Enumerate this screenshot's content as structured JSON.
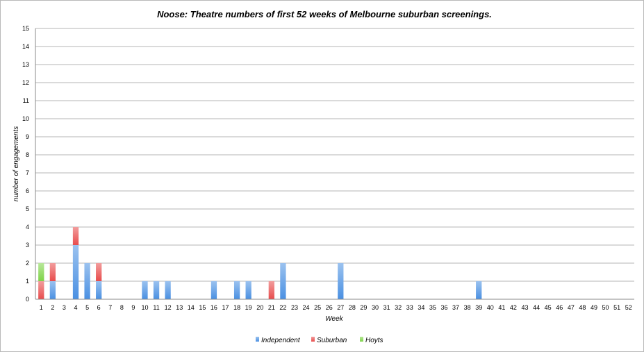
{
  "chart_data": {
    "type": "bar",
    "stacked": true,
    "title": "Noose: Theatre numbers of first 52 weeks of Melbourne suburban screenings.",
    "xlabel": "Week",
    "ylabel": "number of engagements",
    "ylim": [
      0,
      15
    ],
    "grid": true,
    "legend_position": "bottom",
    "categories": [
      "1",
      "2",
      "3",
      "4",
      "5",
      "6",
      "7",
      "8",
      "9",
      "10",
      "11",
      "12",
      "13",
      "14",
      "15",
      "16",
      "17",
      "18",
      "19",
      "20",
      "21",
      "22",
      "23",
      "24",
      "25",
      "26",
      "27",
      "28",
      "29",
      "30",
      "31",
      "32",
      "33",
      "34",
      "35",
      "36",
      "37",
      "38",
      "39",
      "40",
      "41",
      "42",
      "43",
      "44",
      "45",
      "46",
      "47",
      "48",
      "49",
      "50",
      "51",
      "52"
    ],
    "series": [
      {
        "name": "Independent",
        "color": "#4a90e2",
        "values": [
          0,
          1,
          0,
          3,
          2,
          1,
          0,
          0,
          0,
          1,
          1,
          1,
          0,
          0,
          0,
          1,
          0,
          1,
          1,
          0,
          0,
          2,
          0,
          0,
          0,
          0,
          2,
          0,
          0,
          0,
          0,
          0,
          0,
          0,
          0,
          0,
          0,
          0,
          1,
          0,
          0,
          0,
          0,
          0,
          0,
          0,
          0,
          0,
          0,
          0,
          0,
          0
        ]
      },
      {
        "name": "Suburban",
        "color": "#e84c4c",
        "values": [
          1,
          1,
          0,
          1,
          0,
          1,
          0,
          0,
          0,
          0,
          0,
          0,
          0,
          0,
          0,
          0,
          0,
          0,
          0,
          0,
          1,
          0,
          0,
          0,
          0,
          0,
          0,
          0,
          0,
          0,
          0,
          0,
          0,
          0,
          0,
          0,
          0,
          0,
          0,
          0,
          0,
          0,
          0,
          0,
          0,
          0,
          0,
          0,
          0,
          0,
          0,
          0
        ]
      },
      {
        "name": "Hoyts",
        "color": "#7ed348",
        "values": [
          1,
          0,
          0,
          0,
          0,
          0,
          0,
          0,
          0,
          0,
          0,
          0,
          0,
          0,
          0,
          0,
          0,
          0,
          0,
          0,
          0,
          0,
          0,
          0,
          0,
          0,
          0,
          0,
          0,
          0,
          0,
          0,
          0,
          0,
          0,
          0,
          0,
          0,
          0,
          0,
          0,
          0,
          0,
          0,
          0,
          0,
          0,
          0,
          0,
          0,
          0,
          0
        ]
      }
    ]
  }
}
